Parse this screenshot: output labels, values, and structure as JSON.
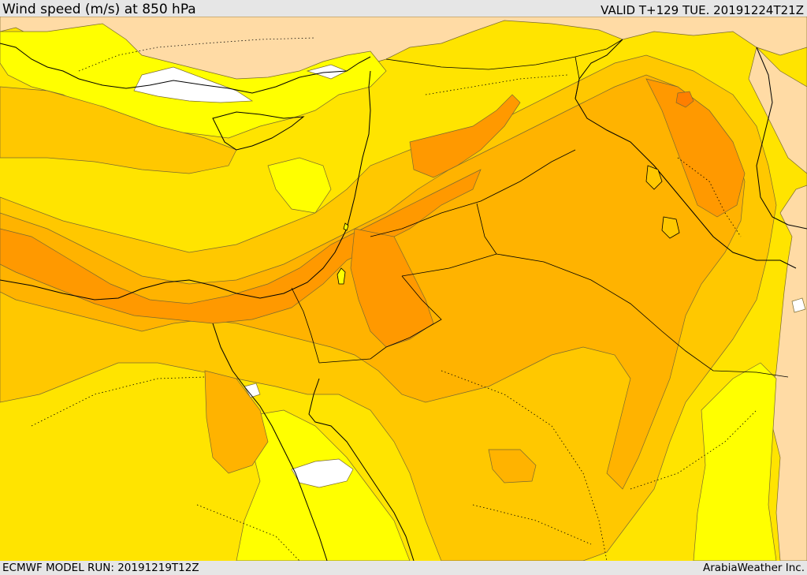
{
  "header": {
    "title": "Wind speed (m/s) at 850 hPa",
    "valid": "VALID T+129 TUE. 20191224T21Z"
  },
  "footer": {
    "model_run": "ECMWF MODEL RUN: 20191219T12Z",
    "credit": "ArabiaWeather Inc."
  },
  "colors": {
    "land_calm": "#ffdba5",
    "light_yellow": "#ffff00",
    "yellow": "#ffe400",
    "gold": "#ffc800",
    "amber": "#ffb300",
    "orange": "#ff9900",
    "dark_orange": "#ff7f00",
    "calm_white": "#ffffff",
    "contour": "#7a6a30",
    "coast": "#000000"
  }
}
